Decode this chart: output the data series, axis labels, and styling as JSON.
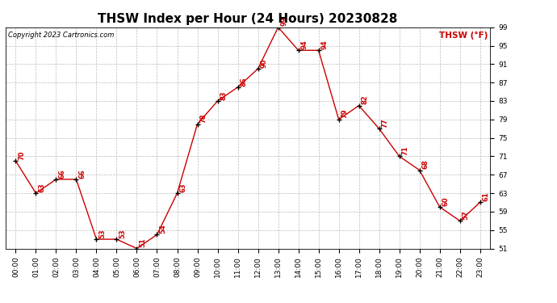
{
  "title": "THSW Index per Hour (24 Hours) 20230828",
  "copyright": "Copyright 2023 Cartronics.com",
  "legend_label": "THSW (°F)",
  "hours": [
    "00:00",
    "01:00",
    "02:00",
    "03:00",
    "04:00",
    "05:00",
    "06:00",
    "07:00",
    "08:00",
    "09:00",
    "10:00",
    "11:00",
    "12:00",
    "13:00",
    "14:00",
    "15:00",
    "16:00",
    "17:00",
    "18:00",
    "19:00",
    "20:00",
    "21:00",
    "22:00",
    "23:00"
  ],
  "values": [
    70,
    63,
    66,
    66,
    53,
    53,
    51,
    54,
    63,
    78,
    83,
    86,
    90,
    99,
    94,
    94,
    79,
    82,
    77,
    71,
    68,
    60,
    57,
    61
  ],
  "line_color": "#cc0000",
  "marker_color": "#000000",
  "label_color": "#cc0000",
  "background_color": "#ffffff",
  "grid_color": "#bbbbbb",
  "title_color": "#000000",
  "copyright_color": "#000000",
  "legend_color": "#cc0000",
  "ylim_min": 51.0,
  "ylim_max": 99.0,
  "yticks": [
    51.0,
    55.0,
    59.0,
    63.0,
    67.0,
    71.0,
    75.0,
    79.0,
    83.0,
    87.0,
    91.0,
    95.0,
    99.0
  ],
  "title_fontsize": 11,
  "label_fontsize": 6,
  "tick_fontsize": 6.5,
  "copyright_fontsize": 6,
  "legend_fontsize": 7.5
}
